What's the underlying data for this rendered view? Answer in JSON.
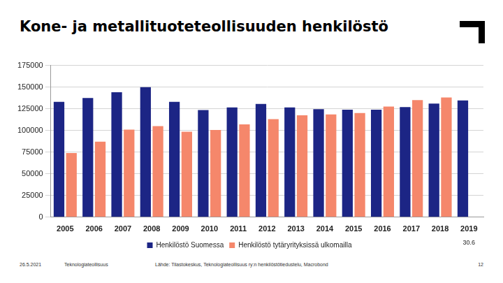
{
  "slide": {
    "title": "Kone- ja metallituoteteollisuuden henkilöstö",
    "footer": {
      "date": "26.5.2021",
      "organization": "Teknologiateollisuus",
      "source": "Lähde: Tilastokeskus, Teknologiateollisuus ry:n henkilöstötiedustelu, Macrobond",
      "page": "12"
    }
  },
  "chart_data": {
    "type": "bar",
    "categories": [
      "2005",
      "2006",
      "2007",
      "2008",
      "2009",
      "2010",
      "2011",
      "2012",
      "2013",
      "2014",
      "2015",
      "2016",
      "2017",
      "2018",
      "2019"
    ],
    "series": [
      {
        "name": "Henkilöstö Suomessa",
        "color": "#1c2585",
        "values": [
          133000,
          137500,
          144000,
          150000,
          133000,
          123500,
          126500,
          130500,
          126500,
          124500,
          124000,
          124000,
          127000,
          131000,
          134500
        ]
      },
      {
        "name": "Henkilöstö tytäryrityksissä ulkomailla",
        "color": "#f5876b",
        "values": [
          74000,
          87000,
          101000,
          105000,
          98500,
          100500,
          107000,
          113000,
          117500,
          118500,
          120000,
          127500,
          135000,
          138000,
          null
        ]
      }
    ],
    "ylim": [
      0,
      175000
    ],
    "yticks": [
      0,
      25000,
      50000,
      75000,
      100000,
      125000,
      150000,
      175000
    ],
    "grid": true,
    "legend": "bottom",
    "annotations": [
      {
        "text": "30.6",
        "category": "2019"
      }
    ]
  }
}
